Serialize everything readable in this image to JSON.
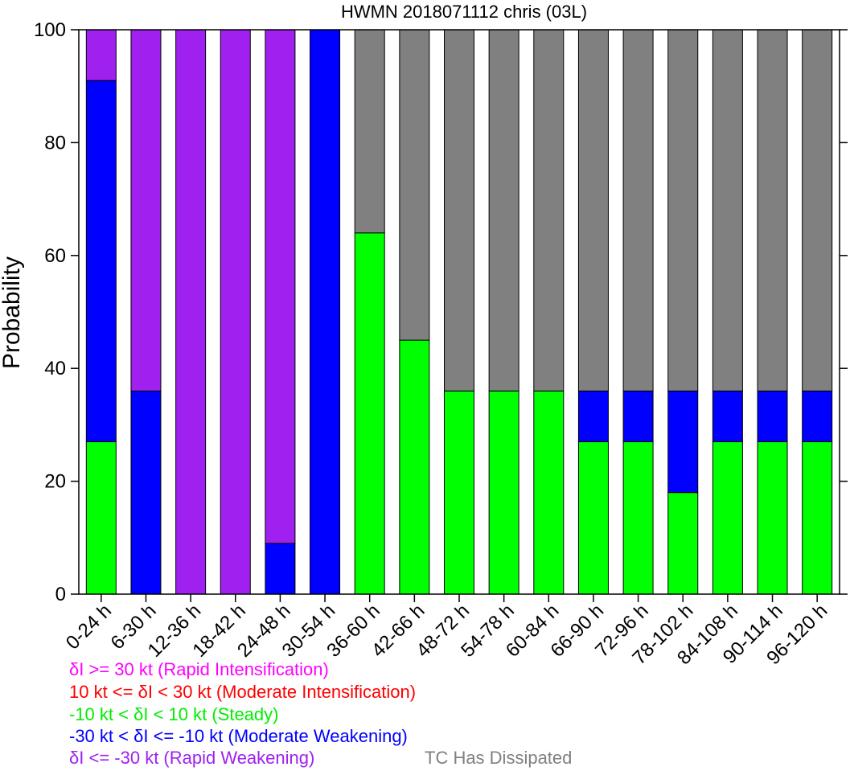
{
  "chart_data": {
    "type": "bar",
    "stacked": true,
    "title": "HWMN 2018071112 chris (03L)",
    "xlabel": "",
    "ylabel": "Probability",
    "ylim": [
      0,
      100
    ],
    "yticks": [
      0,
      20,
      40,
      60,
      80,
      100
    ],
    "grid": false,
    "legend_position": "bottom-left",
    "categories": [
      "0-24 h",
      "6-30 h",
      "12-36 h",
      "18-42 h",
      "24-48 h",
      "30-54 h",
      "36-60 h",
      "42-66 h",
      "48-72 h",
      "54-78 h",
      "60-84 h",
      "66-90 h",
      "72-96 h",
      "78-102 h",
      "84-108 h",
      "90-114 h",
      "96-120 h"
    ],
    "series": [
      {
        "key": "steady",
        "color": "#00ff00",
        "values": [
          27,
          0,
          0,
          0,
          0,
          0,
          64,
          45,
          36,
          36,
          36,
          27,
          27,
          18,
          27,
          27,
          27
        ]
      },
      {
        "key": "modweak",
        "color": "#0000ff",
        "values": [
          64,
          36,
          0,
          0,
          9,
          100,
          0,
          0,
          0,
          0,
          0,
          9,
          9,
          18,
          9,
          9,
          9
        ]
      },
      {
        "key": "rapweak",
        "color": "#a020f0",
        "values": [
          9,
          64,
          100,
          100,
          91,
          0,
          0,
          0,
          0,
          0,
          0,
          0,
          0,
          0,
          0,
          0,
          0
        ]
      },
      {
        "key": "dissipated",
        "color": "#808080",
        "values": [
          0,
          0,
          0,
          0,
          0,
          0,
          36,
          55,
          64,
          64,
          64,
          64,
          64,
          64,
          64,
          64,
          64
        ]
      }
    ],
    "legend": [
      {
        "text": "δI >= 30 kt (Rapid Intensification)",
        "color": "#ff00ff"
      },
      {
        "text": "10 kt <= δI < 30 kt (Moderate Intensification)",
        "color": "#ff0000"
      },
      {
        "text": "-10 kt < δI < 10 kt (Steady)",
        "color": "#00ee00"
      },
      {
        "text": "-30 kt < δI <= -10 kt (Moderate Weakening)",
        "color": "#0000ff"
      },
      {
        "text": "δI <= -30 kt (Rapid Weakening)",
        "color": "#a020f0"
      },
      {
        "text": "TC Has Dissipated",
        "color": "#808080"
      }
    ]
  }
}
